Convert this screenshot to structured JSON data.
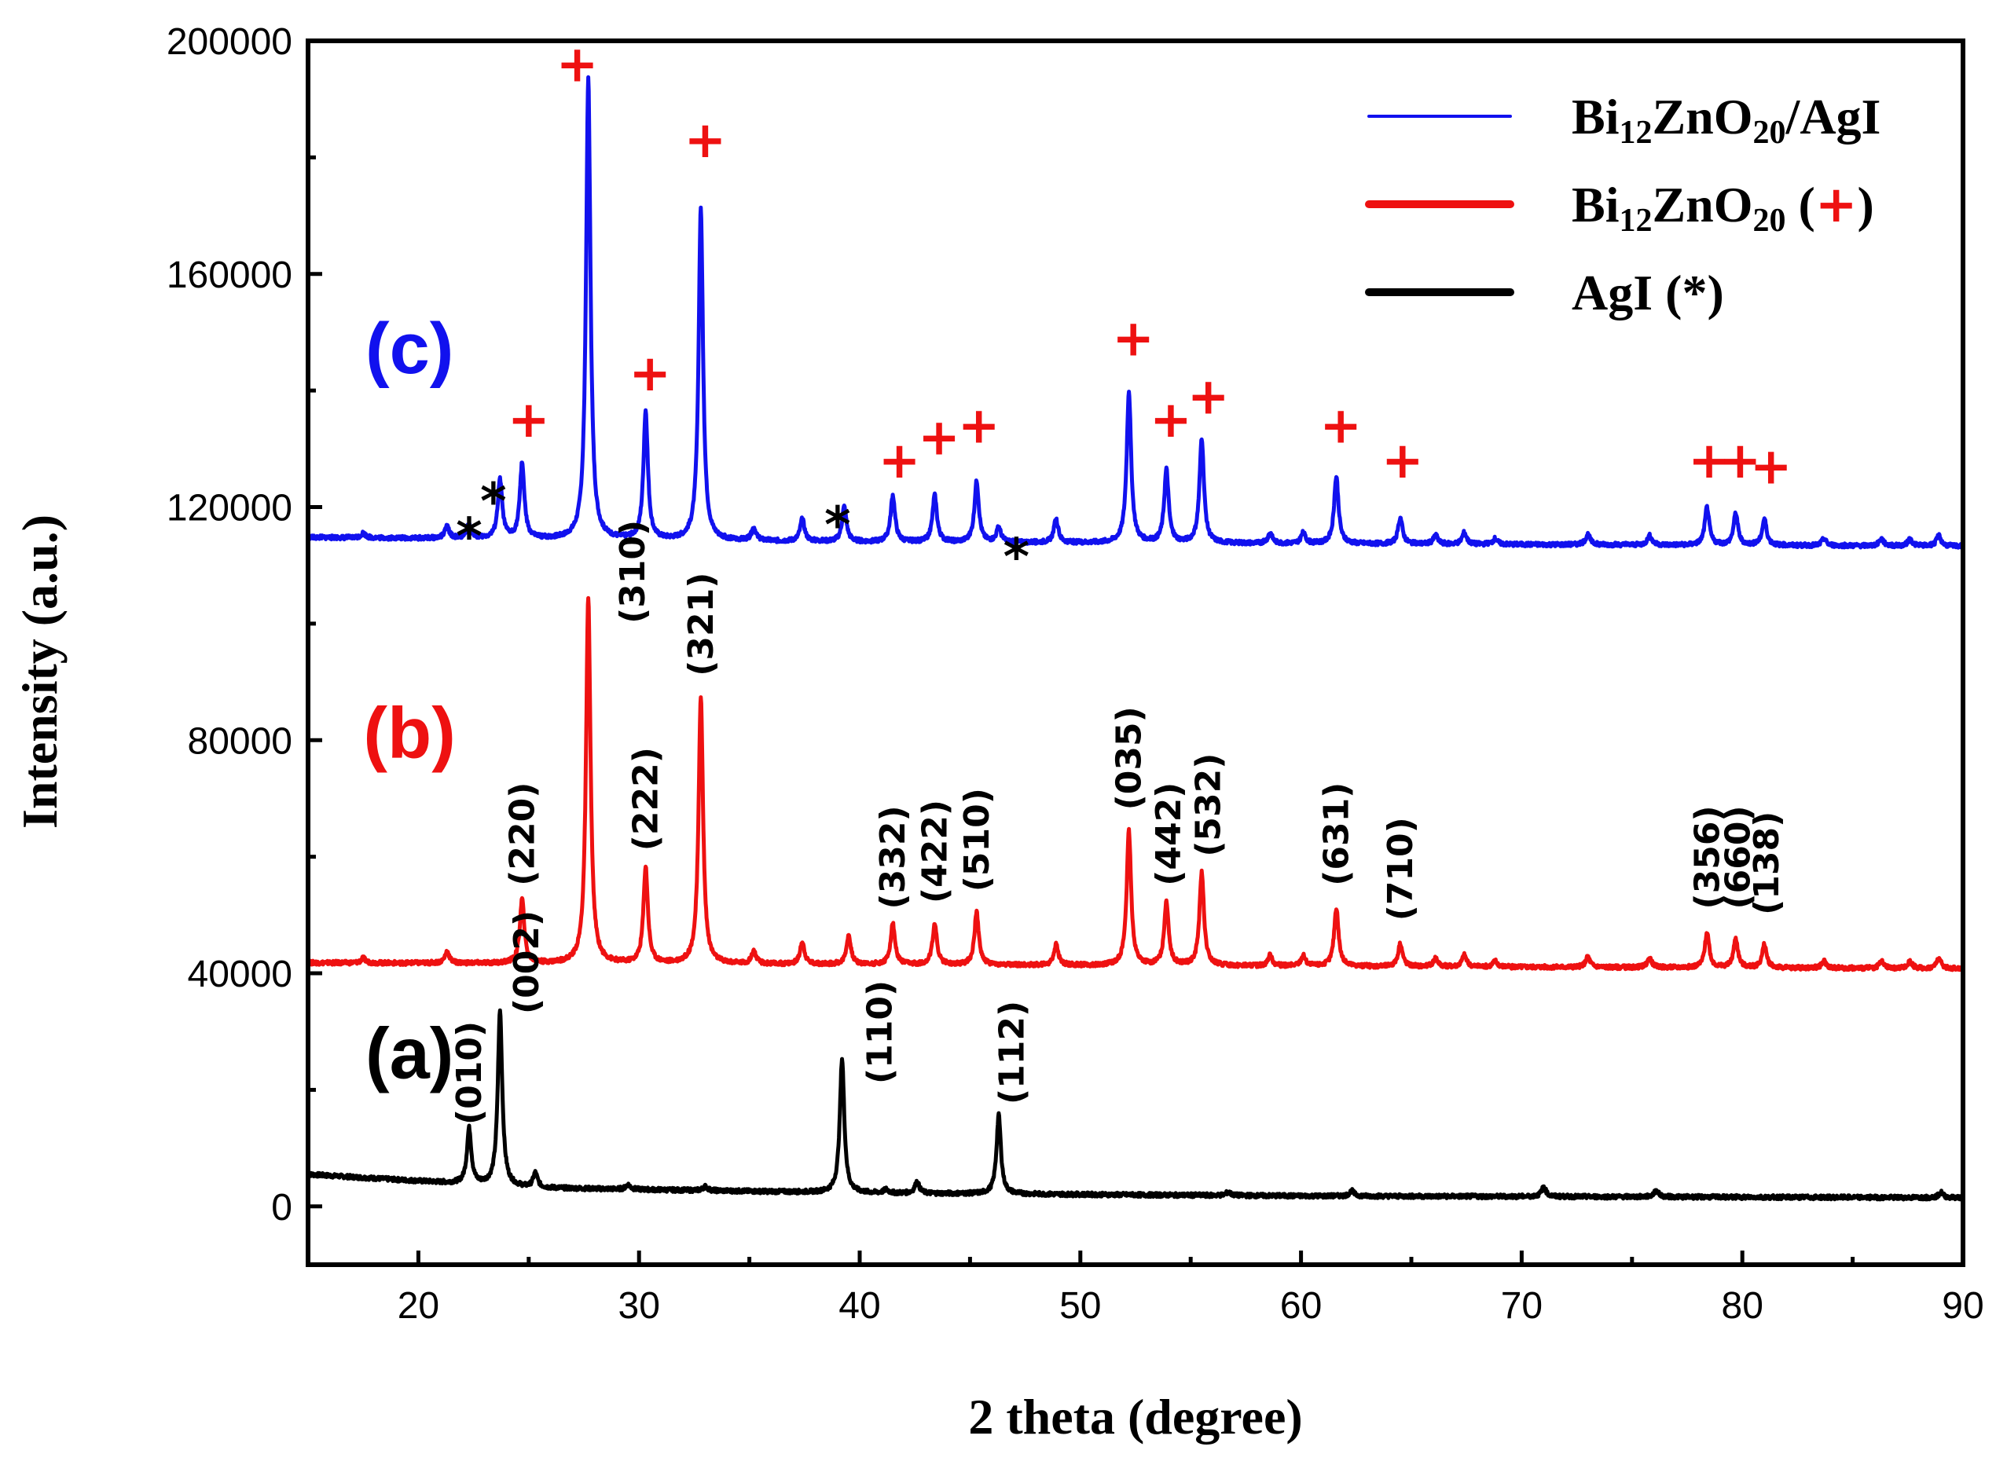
{
  "chart_data": {
    "type": "line",
    "xlabel": "2 theta (degree)",
    "ylabel": "Intensity (a.u.)",
    "xlim": [
      15,
      90
    ],
    "ylim": [
      -10000,
      200000
    ],
    "x_ticks": [
      20,
      30,
      40,
      50,
      60,
      70,
      80,
      90
    ],
    "x_tick_labels": [
      "20",
      "30",
      "40",
      "50",
      "60",
      "70",
      "80",
      "90"
    ],
    "y_ticks": [
      0,
      40000,
      80000,
      120000,
      160000,
      200000
    ],
    "y_tick_labels": [
      "0",
      "40000",
      "80000",
      "120000",
      "160000",
      "200000"
    ],
    "colors": {
      "a": "#000000",
      "b": "#ee1111",
      "c": "#1111ee",
      "plus": "#ee1111",
      "star": "#000000"
    },
    "series": [
      {
        "name": "AgI (*)",
        "label": "(a)",
        "color": "#000000",
        "baseline": [
          [
            15,
            5500
          ],
          [
            25,
            3200
          ],
          [
            40,
            2300
          ],
          [
            60,
            1800
          ],
          [
            90,
            1500
          ]
        ],
        "peaks": [
          [
            22.3,
            9500
          ],
          [
            23.7,
            30000
          ],
          [
            25.3,
            2500
          ],
          [
            29.5,
            800
          ],
          [
            33,
            700
          ],
          [
            39.2,
            23000
          ],
          [
            41.2,
            600
          ],
          [
            42.6,
            2000
          ],
          [
            46.3,
            13500
          ],
          [
            56.7,
            600
          ],
          [
            62.3,
            900
          ],
          [
            71,
            1700
          ],
          [
            76.1,
            1100
          ],
          [
            89,
            900
          ]
        ]
      },
      {
        "name": "Bi12ZnO20 (+)",
        "label": "(b)",
        "color": "#ee1111",
        "baseline": [
          [
            15,
            41800
          ],
          [
            40,
            41500
          ],
          [
            90,
            40800
          ]
        ],
        "peaks": [
          [
            17.5,
            800
          ],
          [
            21.3,
            2000
          ],
          [
            24.7,
            11000
          ],
          [
            27.7,
            63000
          ],
          [
            30.3,
            16500
          ],
          [
            32.8,
            46000
          ],
          [
            35.2,
            2200
          ],
          [
            37.4,
            3800
          ],
          [
            39.5,
            5000
          ],
          [
            41.5,
            7000
          ],
          [
            43.4,
            7000
          ],
          [
            45.3,
            9000
          ],
          [
            48.9,
            3500
          ],
          [
            52.2,
            23000
          ],
          [
            53.9,
            11000
          ],
          [
            55.5,
            16000
          ],
          [
            58.6,
            1800
          ],
          [
            60.1,
            1800
          ],
          [
            61.6,
            10000
          ],
          [
            64.5,
            4000
          ],
          [
            66.1,
            1500
          ],
          [
            67.4,
            2000
          ],
          [
            68.8,
            1000
          ],
          [
            73,
            1800
          ],
          [
            75.8,
            1600
          ],
          [
            78.4,
            6000
          ],
          [
            79.7,
            5000
          ],
          [
            81,
            4000
          ],
          [
            83.7,
            1200
          ],
          [
            86.3,
            1200
          ],
          [
            87.6,
            1200
          ],
          [
            88.9,
            1800
          ]
        ]
      },
      {
        "name": "Bi12ZnO20/AgI",
        "label": "(c)",
        "color": "#1111ee",
        "baseline": [
          [
            15,
            114800
          ],
          [
            40,
            114000
          ],
          [
            90,
            113300
          ]
        ],
        "peaks": [
          [
            17.5,
            800
          ],
          [
            21.3,
            2000
          ],
          [
            22.3,
            2500
          ],
          [
            23.7,
            10000
          ],
          [
            24.7,
            13000
          ],
          [
            27.7,
            79000
          ],
          [
            30.3,
            22000
          ],
          [
            32.8,
            57000
          ],
          [
            35.2,
            2200
          ],
          [
            37.4,
            3800
          ],
          [
            39.3,
            6000
          ],
          [
            41.5,
            8000
          ],
          [
            43.4,
            8000
          ],
          [
            45.3,
            10500
          ],
          [
            46.3,
            2500
          ],
          [
            48.9,
            4000
          ],
          [
            52.2,
            26000
          ],
          [
            53.9,
            12500
          ],
          [
            55.5,
            18000
          ],
          [
            58.6,
            1800
          ],
          [
            60.1,
            1800
          ],
          [
            61.6,
            11500
          ],
          [
            64.5,
            4500
          ],
          [
            66.1,
            1500
          ],
          [
            67.4,
            2000
          ],
          [
            68.8,
            1000
          ],
          [
            73,
            1800
          ],
          [
            75.8,
            1600
          ],
          [
            78.4,
            6500
          ],
          [
            79.7,
            5500
          ],
          [
            81,
            4500
          ],
          [
            83.7,
            1200
          ],
          [
            86.3,
            1200
          ],
          [
            87.6,
            1200
          ],
          [
            88.9,
            1800
          ]
        ]
      }
    ],
    "curve_labels": [
      {
        "text": "(a)",
        "series": "a",
        "x": 19.6,
        "y": 22000
      },
      {
        "text": "(b)",
        "series": "b",
        "x": 19.6,
        "y": 77000
      },
      {
        "text": "(c)",
        "series": "c",
        "x": 19.6,
        "y": 143000
      }
    ],
    "hkl_labels": [
      {
        "text": "(010)",
        "x": 22.3,
        "y": 14000
      },
      {
        "text": "(002)",
        "x": 24.9,
        "y": 33000
      },
      {
        "text": "(110)",
        "x": 40.9,
        "y": 21000
      },
      {
        "text": "(112)",
        "x": 46.9,
        "y": 17500
      },
      {
        "text": "(220)",
        "x": 24.7,
        "y": 55000
      },
      {
        "text": "(310)",
        "x": 29.7,
        "y": 100000
      },
      {
        "text": "(222)",
        "x": 30.3,
        "y": 61000
      },
      {
        "text": "(321)",
        "x": 32.8,
        "y": 91000
      },
      {
        "text": "(332)",
        "x": 41.5,
        "y": 51000
      },
      {
        "text": "(422)",
        "x": 43.4,
        "y": 52000
      },
      {
        "text": "(510)",
        "x": 45.3,
        "y": 54000
      },
      {
        "text": "(035)",
        "x": 52.2,
        "y": 68000
      },
      {
        "text": "(442)",
        "x": 54.0,
        "y": 55000
      },
      {
        "text": "(532)",
        "x": 55.8,
        "y": 60000
      },
      {
        "text": "(631)",
        "x": 61.6,
        "y": 55000
      },
      {
        "text": "(710)",
        "x": 64.5,
        "y": 49000
      },
      {
        "text": "(356)",
        "x": 78.4,
        "y": 51000
      },
      {
        "text": "(660)",
        "x": 79.8,
        "y": 51000
      },
      {
        "text": "(138)",
        "x": 81.1,
        "y": 50000
      }
    ],
    "plus_markers": [
      {
        "text": "+",
        "x": 27.2,
        "y": 196000
      },
      {
        "text": "+",
        "x": 33.0,
        "y": 183000
      },
      {
        "text": "+",
        "x": 30.5,
        "y": 143000
      },
      {
        "text": "+",
        "x": 25.0,
        "y": 135000
      },
      {
        "text": "+",
        "x": 41.8,
        "y": 128000
      },
      {
        "text": "+",
        "x": 43.6,
        "y": 132000
      },
      {
        "text": "+",
        "x": 45.4,
        "y": 134000
      },
      {
        "text": "+",
        "x": 52.4,
        "y": 149000
      },
      {
        "text": "+",
        "x": 54.1,
        "y": 135000
      },
      {
        "text": "+",
        "x": 55.8,
        "y": 139000
      },
      {
        "text": "+",
        "x": 61.8,
        "y": 134000
      },
      {
        "text": "+",
        "x": 64.6,
        "y": 128000
      },
      {
        "text": "+",
        "x": 78.5,
        "y": 128000
      },
      {
        "text": "+",
        "x": 79.9,
        "y": 128000
      },
      {
        "text": "+",
        "x": 81.3,
        "y": 127000
      }
    ],
    "star_markers": [
      {
        "text": "*",
        "x": 22.3,
        "y": 116000
      },
      {
        "text": "*",
        "x": 23.4,
        "y": 122000
      },
      {
        "text": "*",
        "x": 39.0,
        "y": 118000
      },
      {
        "text": "*",
        "x": 47.1,
        "y": 112500
      }
    ],
    "legend": [
      {
        "series": "c",
        "parts": [
          [
            "Bi",
            ""
          ],
          [
            "12",
            "sub"
          ],
          [
            "ZnO",
            ""
          ],
          [
            "20",
            "sub"
          ],
          [
            "/AgI",
            ""
          ]
        ],
        "thin": true
      },
      {
        "series": "b",
        "parts": [
          [
            "Bi",
            ""
          ],
          [
            "12",
            "sub"
          ],
          [
            "ZnO",
            ""
          ],
          [
            "20",
            "sub"
          ],
          [
            " (",
            ""
          ],
          [
            "+",
            "red"
          ],
          [
            ")",
            ""
          ]
        ],
        "thin": false
      },
      {
        "series": "a",
        "parts": [
          [
            "AgI (*)",
            ""
          ]
        ],
        "thin": false
      }
    ],
    "legend_position": "top-right"
  }
}
